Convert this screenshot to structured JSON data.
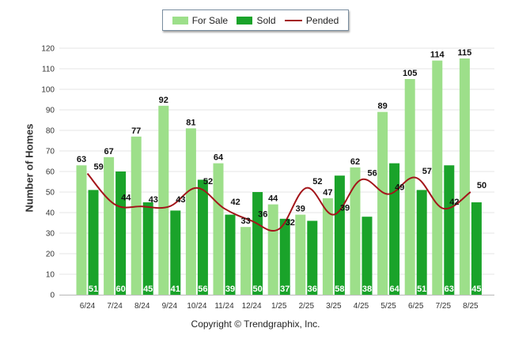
{
  "chart_data": {
    "type": "bar",
    "categories": [
      "6/24",
      "7/24",
      "8/24",
      "9/24",
      "10/24",
      "11/24",
      "12/24",
      "1/25",
      "2/25",
      "3/25",
      "4/25",
      "5/25",
      "6/25",
      "7/25",
      "8/25"
    ],
    "series": [
      {
        "name": "For Sale",
        "type": "bar",
        "color": "#9ddf8a",
        "values": [
          63,
          67,
          77,
          92,
          81,
          64,
          33,
          44,
          39,
          47,
          62,
          89,
          105,
          114,
          115
        ]
      },
      {
        "name": "Sold",
        "type": "bar",
        "color": "#1aa32a",
        "values": [
          51,
          60,
          45,
          41,
          56,
          39,
          50,
          37,
          36,
          58,
          38,
          64,
          51,
          63,
          45
        ]
      },
      {
        "name": "Pended",
        "type": "line",
        "color": "#a3151a",
        "values": [
          59,
          44,
          43,
          43,
          52,
          42,
          36,
          32,
          52,
          39,
          56,
          49,
          57,
          42,
          50
        ]
      }
    ],
    "xlabel": "",
    "ylabel": "Number of Homes",
    "ylim": [
      0,
      120
    ],
    "yticks": [
      0,
      10,
      20,
      30,
      40,
      50,
      60,
      70,
      80,
      90,
      100,
      110,
      120
    ],
    "grid": true,
    "legend": "top-center"
  },
  "copyright": "Copyright © Trendgraphix, Inc."
}
